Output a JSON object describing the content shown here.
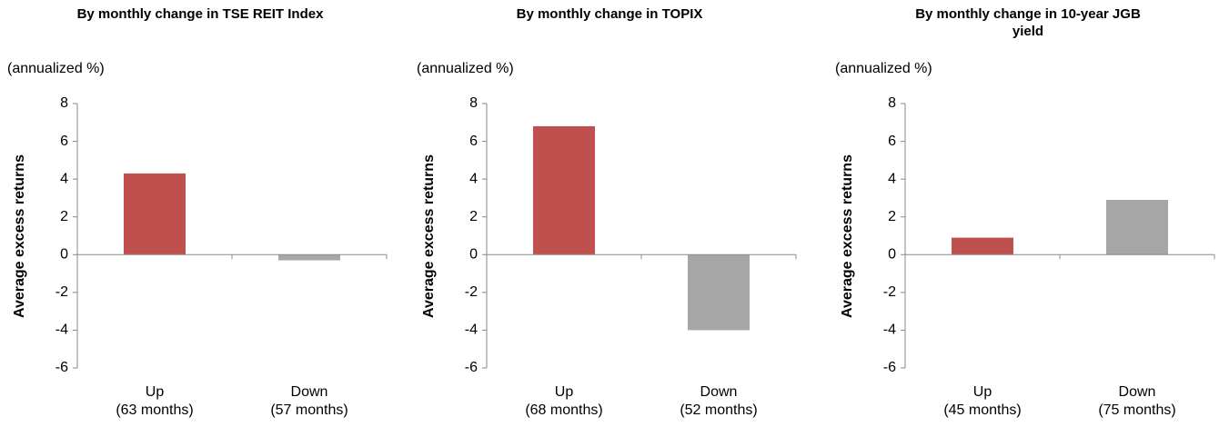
{
  "chart_data": [
    {
      "type": "bar",
      "title": "By monthly change in TSE REIT Index",
      "unit_label": "(annualized %)",
      "y_label": "Average excess returns",
      "categories": [
        [
          "Up",
          "(63 months)"
        ],
        [
          "Down",
          "(57 months)"
        ]
      ],
      "values": [
        4.3,
        -0.3
      ],
      "colors": [
        "#c0504d",
        "#a6a6a6"
      ],
      "ylim": [
        -6,
        8
      ],
      "yticks": [
        -6,
        -4,
        -2,
        0,
        2,
        4,
        6,
        8
      ]
    },
    {
      "type": "bar",
      "title": "By monthly change in TOPIX",
      "unit_label": "(annualized %)",
      "y_label": "Average excess returns",
      "categories": [
        [
          "Up",
          "(68 months)"
        ],
        [
          "Down",
          "(52 months)"
        ]
      ],
      "values": [
        6.8,
        -4.0
      ],
      "colors": [
        "#c0504d",
        "#a6a6a6"
      ],
      "ylim": [
        -6,
        8
      ],
      "yticks": [
        -6,
        -4,
        -2,
        0,
        2,
        4,
        6,
        8
      ]
    },
    {
      "type": "bar",
      "title": "By monthly change in 10-year JGB yield",
      "unit_label": "(annualized %)",
      "y_label": "Average excess returns",
      "categories": [
        [
          "Up",
          "(45 months)"
        ],
        [
          "Down",
          "(75 months)"
        ]
      ],
      "values": [
        0.9,
        2.9
      ],
      "colors": [
        "#c0504d",
        "#a6a6a6"
      ],
      "ylim": [
        -6,
        8
      ],
      "yticks": [
        -6,
        -4,
        -2,
        0,
        2,
        4,
        6,
        8
      ]
    }
  ]
}
